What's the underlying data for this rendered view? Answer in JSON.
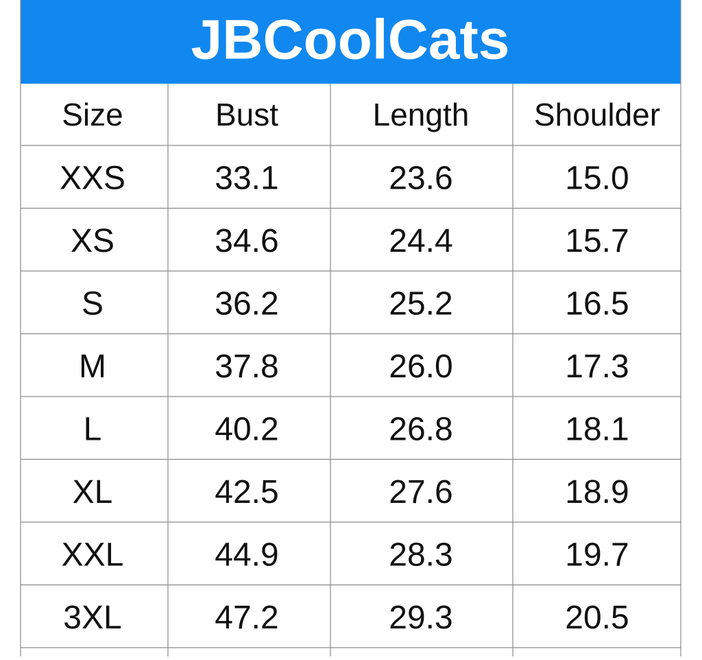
{
  "header": {
    "title": "JBCoolCats"
  },
  "table": {
    "columns": [
      "Size",
      "Bust",
      "Length",
      "Shoulder"
    ],
    "rows": [
      [
        "XXS",
        "33.1",
        "23.6",
        "15.0"
      ],
      [
        "XS",
        "34.6",
        "24.4",
        "15.7"
      ],
      [
        "S",
        "36.2",
        "25.2",
        "16.5"
      ],
      [
        "M",
        "37.8",
        "26.0",
        "17.3"
      ],
      [
        "L",
        "40.2",
        "26.8",
        "18.1"
      ],
      [
        "XL",
        "42.5",
        "27.6",
        "18.9"
      ],
      [
        "XXL",
        "44.9",
        "28.3",
        "19.7"
      ],
      [
        "3XL",
        "47.2",
        "29.3",
        "20.5"
      ]
    ]
  }
}
